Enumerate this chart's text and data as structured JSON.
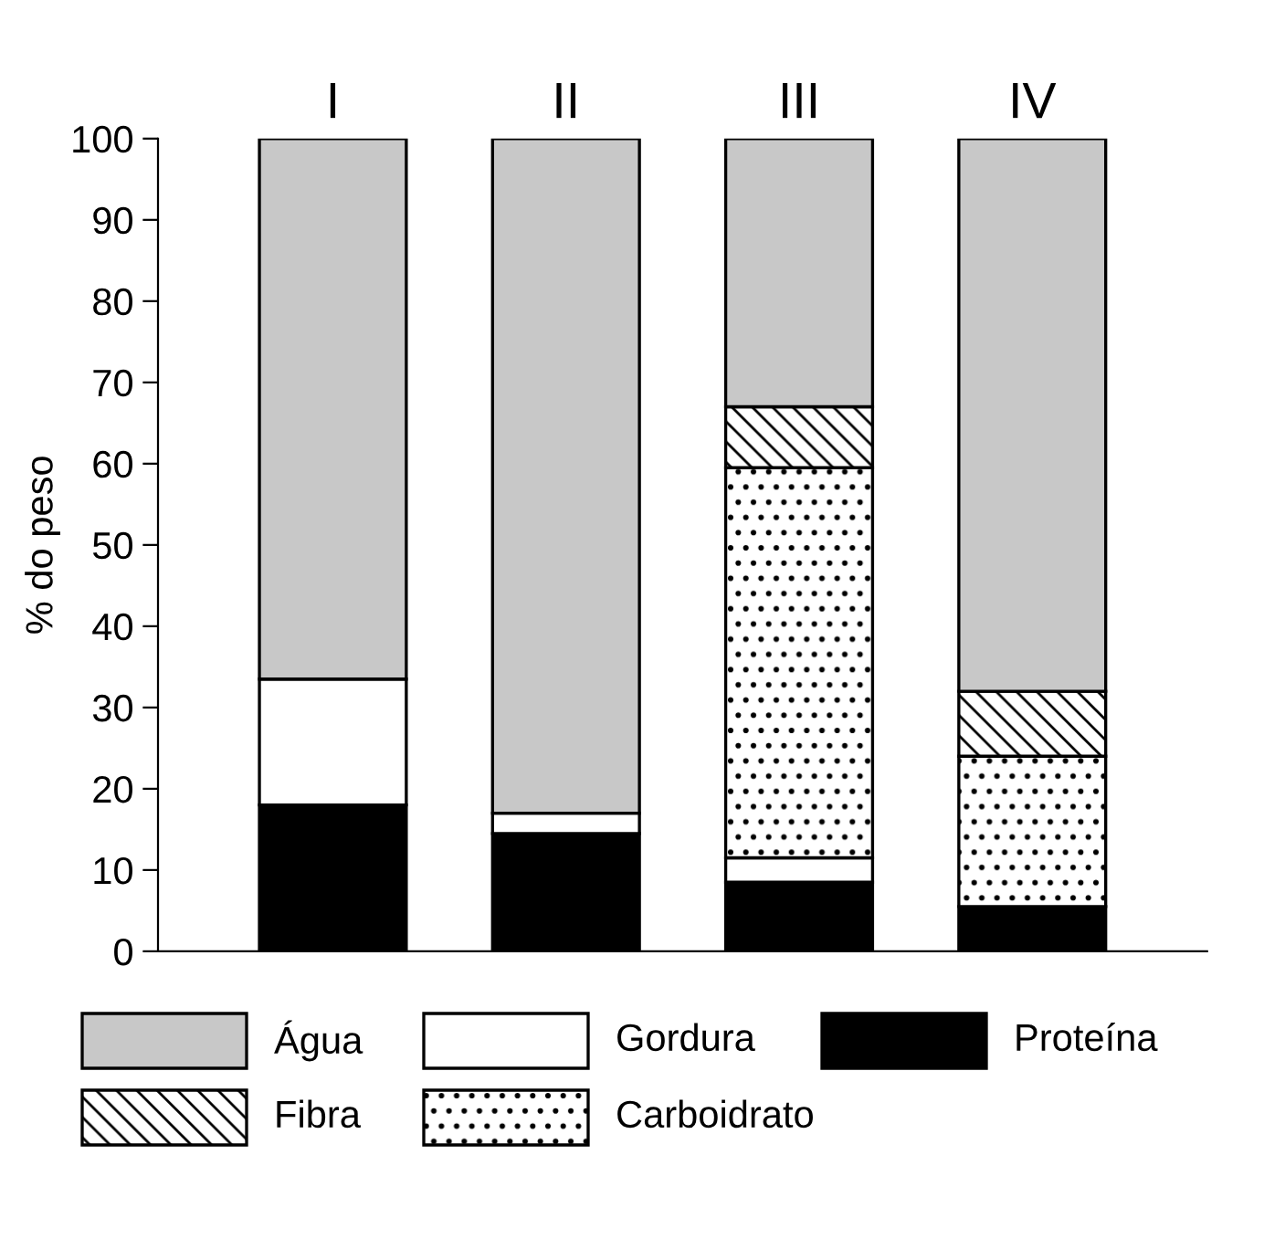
{
  "chart_data": {
    "type": "bar",
    "stacked": true,
    "ylabel": "% do peso",
    "categories": [
      "I",
      "II",
      "III",
      "IV"
    ],
    "series": [
      {
        "name": "Proteína",
        "color": "#000000",
        "values": [
          18,
          14.5,
          8.5,
          5.5
        ]
      },
      {
        "name": "Gordura",
        "color": "#ffffff",
        "values": [
          15.5,
          2.5,
          3,
          0
        ]
      },
      {
        "name": "Carboidrato",
        "color": "#ffffff",
        "values": [
          0,
          0,
          48,
          18.5
        ]
      },
      {
        "name": "Fibra",
        "color": "#ffffff",
        "values": [
          0,
          0,
          7.5,
          8
        ]
      },
      {
        "name": "Água",
        "color": "#c8c8c8",
        "values": [
          66.5,
          83,
          33,
          68
        ]
      }
    ],
    "ylim": [
      0,
      100
    ],
    "yticks": [
      0,
      10,
      20,
      30,
      40,
      50,
      60,
      70,
      80,
      90,
      100
    ],
    "grid": false,
    "legend": "bottom"
  }
}
